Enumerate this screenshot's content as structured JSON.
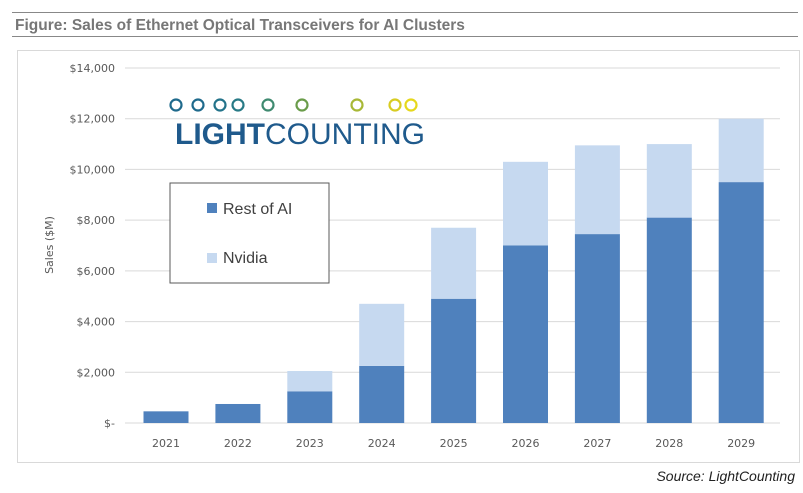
{
  "chart_data": {
    "type": "bar",
    "stacked": true,
    "title": "Figure: Sales of Ethernet Optical Transceivers for AI Clusters",
    "ylabel": "Sales ($M)",
    "xlabel": "",
    "categories": [
      "2021",
      "2022",
      "2023",
      "2024",
      "2025",
      "2026",
      "2027",
      "2028",
      "2029"
    ],
    "series": [
      {
        "name": "Rest of AI",
        "color": "#4f81bd",
        "values": [
          460,
          750,
          1250,
          2250,
          4900,
          7000,
          7450,
          8100,
          9500
        ]
      },
      {
        "name": "Nvidia",
        "color": "#c6d9f0",
        "values": [
          0,
          0,
          800,
          2450,
          2800,
          3300,
          3500,
          2900,
          2500
        ]
      }
    ],
    "ylim": [
      0,
      14000
    ],
    "yticks": [
      0,
      2000,
      4000,
      6000,
      8000,
      10000,
      12000,
      14000
    ],
    "ytick_labels": [
      "$-",
      "$2,000",
      "$4,000",
      "$6,000",
      "$8,000",
      "$10,000",
      "$12,000",
      "$14,000"
    ],
    "grid": true,
    "legend": "left"
  },
  "logo": {
    "text_bold": "LIGHT",
    "text_regular": "COUNTING"
  },
  "source": "Source: LightCounting"
}
